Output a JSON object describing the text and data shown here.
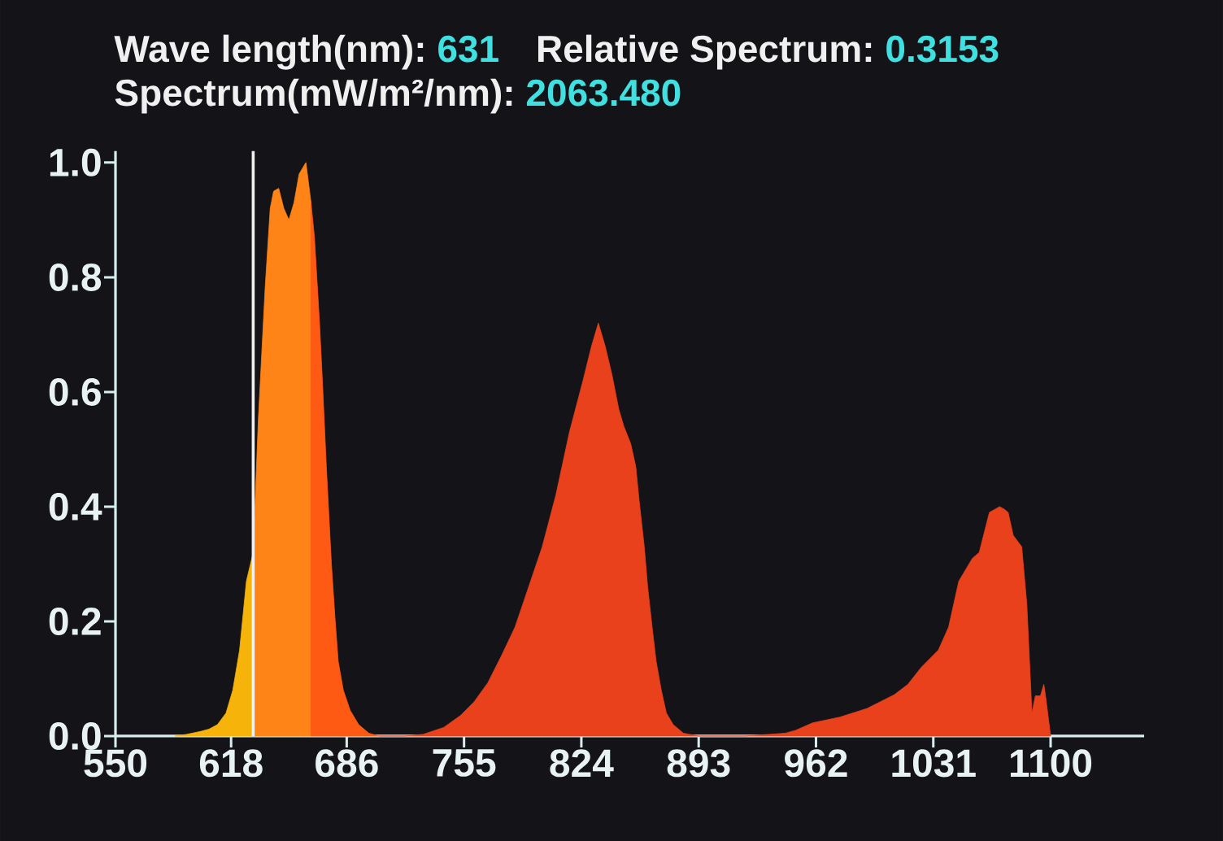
{
  "chart_data": {
    "type": "area",
    "annotations": [
      "Wave length(nm):",
      "631",
      "Relative Spectrum:",
      "0.3153",
      "Spectrum(mW/m²/nm):",
      "2063.480"
    ],
    "xlim": [
      550,
      1155
    ],
    "ylim": [
      0,
      1.02
    ],
    "xticks": [
      550,
      618,
      686,
      755,
      824,
      893,
      962,
      1031,
      1100
    ],
    "yticks": [
      {
        "value": 0,
        "label": "0.0"
      },
      {
        "value": 0.2,
        "label": "0.2"
      },
      {
        "value": 0.4,
        "label": "0.4"
      },
      {
        "value": 0.6,
        "label": "0.6"
      },
      {
        "value": 0.8,
        "label": "0.8"
      },
      {
        "value": 1,
        "label": "1.0"
      }
    ],
    "ref_lines": [
      {
        "axis": "x",
        "value": 631,
        "color": "#f0f0f0"
      }
    ],
    "series": [
      {
        "color": "#f6b40a",
        "x": [
          585,
          592,
          600,
          605,
          610,
          615,
          619,
          623,
          627,
          631
        ],
        "values": [
          0,
          0.003,
          0.008,
          0.012,
          0.02,
          0.04,
          0.08,
          0.15,
          0.27,
          0.32
        ]
      },
      {
        "color": "#ff8418",
        "x": [
          631,
          634,
          638,
          641,
          643,
          646,
          649,
          652,
          655,
          658,
          662,
          665
        ],
        "values": [
          0.32,
          0.55,
          0.78,
          0.92,
          0.95,
          0.955,
          0.92,
          0.9,
          0.93,
          0.98,
          1.0,
          0.93
        ]
      },
      {
        "color": "#ff5a14",
        "x": [
          665,
          667,
          670,
          672,
          674,
          677,
          679,
          681,
          684,
          688,
          693,
          699,
          705
        ],
        "values": [
          0.93,
          0.87,
          0.72,
          0.6,
          0.47,
          0.3,
          0.21,
          0.13,
          0.08,
          0.045,
          0.02,
          0.005,
          0
        ]
      },
      {
        "color": "#e8411c",
        "x": [
          705,
          720,
          731,
          743,
          753,
          761,
          769,
          777,
          785,
          793,
          801,
          809,
          817,
          825,
          830,
          834,
          838,
          842,
          846,
          849,
          853,
          856,
          858,
          861,
          863,
          866,
          868,
          871,
          874,
          878,
          884,
          893,
          920,
          944,
          950,
          960,
          976,
          992,
          1008,
          1016,
          1024,
          1034,
          1040,
          1046,
          1050,
          1054,
          1058,
          1061,
          1064,
          1067,
          1070,
          1073,
          1075,
          1078,
          1083,
          1086,
          1089,
          1091,
          1094,
          1096,
          1097,
          1100
        ],
        "values": [
          0,
          0,
          0.003,
          0.015,
          0.036,
          0.06,
          0.093,
          0.14,
          0.19,
          0.26,
          0.33,
          0.42,
          0.53,
          0.62,
          0.68,
          0.72,
          0.68,
          0.63,
          0.57,
          0.54,
          0.51,
          0.47,
          0.41,
          0.33,
          0.26,
          0.18,
          0.13,
          0.08,
          0.04,
          0.02,
          0.005,
          0,
          0,
          0.005,
          0.01,
          0.023,
          0.033,
          0.048,
          0.072,
          0.09,
          0.12,
          0.15,
          0.19,
          0.27,
          0.29,
          0.31,
          0.32,
          0.355,
          0.39,
          0.395,
          0.4,
          0.395,
          0.39,
          0.35,
          0.33,
          0.23,
          0.04,
          0.07,
          0.07,
          0.09,
          0.07,
          0
        ]
      }
    ]
  }
}
